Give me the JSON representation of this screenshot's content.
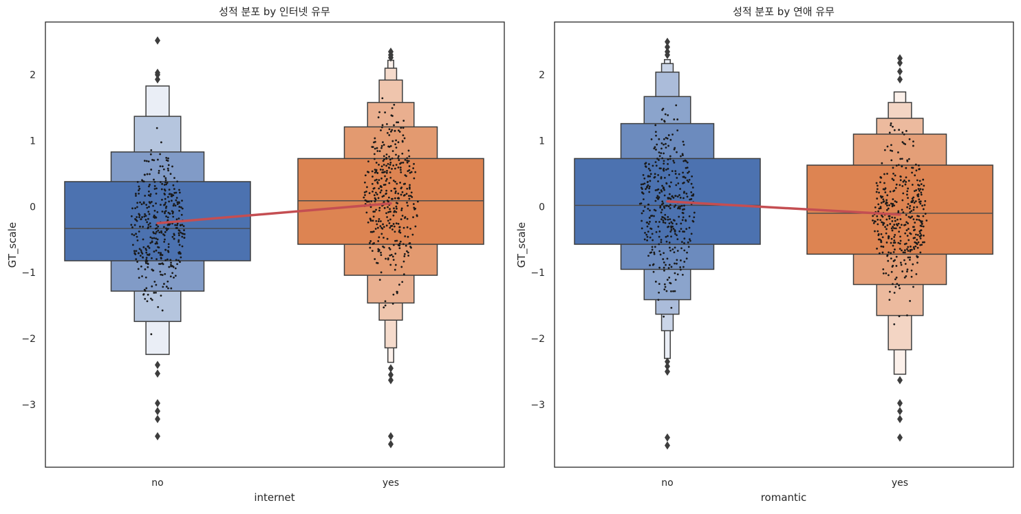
{
  "chart_data": [
    {
      "type": "boxen",
      "title": "성적 분포 by 인터넷 유무",
      "xlabel": "internet",
      "ylabel": "GT_scale",
      "categories": [
        "no",
        "yes"
      ],
      "ylim": [
        -3.95,
        2.8
      ],
      "yticks": [
        -3,
        -2,
        -1,
        0,
        1,
        2
      ],
      "grid": false,
      "colors": [
        "#4c72b0",
        "#dd8452"
      ],
      "mean_line_color": "#c44e52",
      "groups": [
        {
          "name": "no",
          "median": -0.33,
          "mean": -0.25,
          "levels": [
            [
              -0.82,
              0.38
            ],
            [
              -1.28,
              0.83
            ],
            [
              -1.74,
              1.37
            ],
            [
              -2.24,
              1.83
            ]
          ],
          "outliers": [
            2.52,
            2.03,
            2.0,
            1.93,
            -2.4,
            -2.53,
            -2.98,
            -3.1,
            -3.22,
            -3.48
          ]
        },
        {
          "name": "yes",
          "median": 0.09,
          "mean": 0.05,
          "levels": [
            [
              -0.57,
              0.73
            ],
            [
              -1.04,
              1.21
            ],
            [
              -1.46,
              1.58
            ],
            [
              -1.72,
              1.92
            ],
            [
              -2.14,
              2.1
            ],
            [
              -2.36,
              2.22
            ]
          ],
          "outliers": [
            2.35,
            2.3,
            2.26,
            -2.45,
            -2.55,
            -2.63,
            -3.48,
            -3.6
          ]
        }
      ]
    },
    {
      "type": "boxen",
      "title": "성적 분포 by 연애 유무",
      "xlabel": "romantic",
      "ylabel": "GT_scale",
      "categories": [
        "no",
        "yes"
      ],
      "ylim": [
        -3.95,
        2.8
      ],
      "yticks": [
        -3,
        -2,
        -1,
        0,
        1,
        2
      ],
      "grid": false,
      "colors": [
        "#4c72b0",
        "#dd8452"
      ],
      "mean_line_color": "#c44e52",
      "groups": [
        {
          "name": "no",
          "median": 0.02,
          "mean": 0.08,
          "levels": [
            [
              -0.57,
              0.73
            ],
            [
              -0.95,
              1.26
            ],
            [
              -1.41,
              1.67
            ],
            [
              -1.63,
              2.04
            ],
            [
              -1.88,
              2.17
            ],
            [
              -2.3,
              2.23
            ]
          ],
          "outliers": [
            2.5,
            2.42,
            2.35,
            2.3,
            -2.35,
            -2.42,
            -2.5,
            -3.5,
            -3.62
          ]
        },
        {
          "name": "yes",
          "median": -0.1,
          "mean": -0.12,
          "levels": [
            [
              -0.72,
              0.63
            ],
            [
              -1.18,
              1.1
            ],
            [
              -1.65,
              1.34
            ],
            [
              -2.17,
              1.58
            ],
            [
              -2.54,
              1.74
            ]
          ],
          "outliers": [
            2.25,
            2.18,
            2.05,
            1.93,
            -2.63,
            -2.98,
            -3.1,
            -3.22,
            -3.5
          ]
        }
      ]
    }
  ]
}
